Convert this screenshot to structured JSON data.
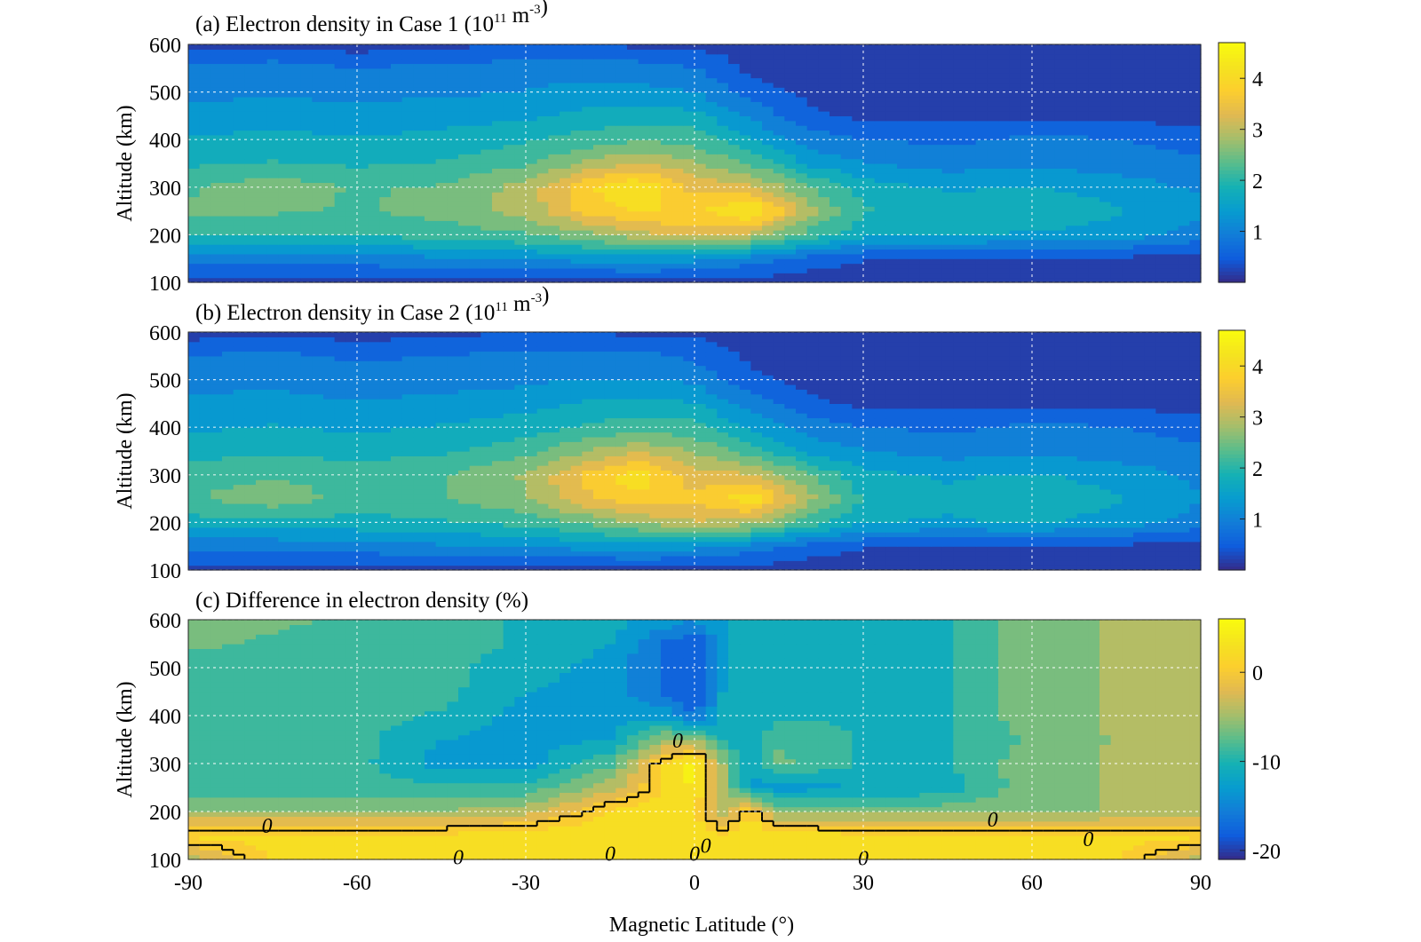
{
  "figure": {
    "xlabel": "Magnetic Latitude (°)"
  },
  "chart_data": [
    {
      "type": "heatmap",
      "title": {
        "main": "(a) Electron density in Case 1 (10",
        "exp": "11",
        "mid": " m",
        "exp2": "-3",
        "end": ")"
      },
      "ylabel": "Altitude (km)",
      "xlim": [
        -90,
        90
      ],
      "ylim": [
        100,
        600
      ],
      "xticks": [
        "-90",
        "-60",
        "-30",
        "0",
        "30",
        "60",
        "90"
      ],
      "yticks": [
        "100",
        "200",
        "300",
        "400",
        "500",
        "600"
      ],
      "grid": true,
      "colorbar": {
        "range": [
          0,
          4.7
        ],
        "ticks": [
          "1",
          "2",
          "3",
          "4"
        ],
        "tick_values": [
          1,
          2,
          3,
          4
        ],
        "colormap": "parula"
      },
      "x": [
        -90,
        -75,
        -60,
        -45,
        -30,
        -20,
        -10,
        0,
        10,
        20,
        30,
        45,
        60,
        75,
        90
      ],
      "y": [
        100,
        150,
        200,
        250,
        300,
        350,
        400,
        450,
        500,
        550,
        600
      ],
      "z": [
        [
          0.2,
          0.2,
          0.2,
          0.2,
          0.2,
          0.2,
          0.2,
          0.2,
          0.2,
          0.2,
          0.2,
          0.2,
          0.2,
          0.2,
          0.2
        ],
        [
          0.9,
          0.9,
          1.0,
          1.1,
          1.2,
          1.3,
          1.4,
          1.3,
          1.0,
          0.6,
          0.4,
          0.3,
          0.3,
          0.3,
          0.2
        ],
        [
          2.0,
          2.0,
          2.0,
          2.1,
          2.3,
          2.6,
          3.0,
          3.3,
          3.0,
          2.2,
          1.7,
          1.6,
          1.5,
          1.4,
          1.0
        ],
        [
          2.4,
          2.4,
          2.3,
          2.5,
          2.9,
          3.6,
          4.0,
          3.8,
          4.4,
          2.9,
          2.0,
          1.8,
          1.9,
          1.6,
          1.3
        ],
        [
          2.3,
          2.6,
          2.3,
          2.4,
          2.9,
          3.8,
          4.3,
          3.4,
          3.3,
          2.4,
          1.8,
          1.5,
          1.6,
          1.4,
          1.1
        ],
        [
          1.9,
          2.0,
          1.9,
          2.0,
          2.3,
          2.8,
          3.2,
          2.8,
          2.3,
          1.5,
          1.2,
          1.0,
          1.1,
          1.0,
          0.9
        ],
        [
          1.6,
          1.7,
          1.6,
          1.7,
          1.9,
          2.1,
          2.3,
          2.2,
          1.6,
          1.0,
          0.8,
          0.7,
          0.9,
          0.8,
          0.6
        ],
        [
          1.3,
          1.4,
          1.3,
          1.4,
          1.5,
          1.7,
          1.8,
          1.7,
          1.1,
          0.5,
          0.3,
          0.3,
          0.3,
          0.3,
          0.2
        ],
        [
          1.1,
          1.1,
          1.1,
          1.1,
          1.2,
          1.3,
          1.3,
          1.2,
          0.6,
          0.3,
          0.2,
          0.2,
          0.2,
          0.2,
          0.2
        ],
        [
          0.9,
          1.0,
          0.8,
          0.9,
          1.0,
          1.0,
          1.0,
          0.8,
          0.3,
          0.2,
          0.2,
          0.2,
          0.2,
          0.2,
          0.2
        ],
        [
          0.2,
          0.3,
          0.2,
          0.3,
          0.4,
          0.4,
          0.3,
          0.3,
          0.2,
          0.2,
          0.2,
          0.2,
          0.2,
          0.2,
          0.2
        ]
      ]
    },
    {
      "type": "heatmap",
      "title": {
        "main": "(b) Electron density in Case 2 (10",
        "exp": "11",
        "mid": " m",
        "exp2": "-3",
        "end": ")"
      },
      "ylabel": "Altitude (km)",
      "xlim": [
        -90,
        90
      ],
      "ylim": [
        100,
        600
      ],
      "xticks": [
        "-90",
        "-60",
        "-30",
        "0",
        "30",
        "60",
        "90"
      ],
      "yticks": [
        "100",
        "200",
        "300",
        "400",
        "500",
        "600"
      ],
      "grid": true,
      "colorbar": {
        "range": [
          0,
          4.7
        ],
        "ticks": [
          "1",
          "2",
          "3",
          "4"
        ],
        "tick_values": [
          1,
          2,
          3,
          4
        ],
        "colormap": "parula"
      },
      "x": [
        -90,
        -75,
        -60,
        -45,
        -30,
        -20,
        -10,
        0,
        10,
        20,
        30,
        45,
        60,
        75,
        90
      ],
      "y": [
        100,
        150,
        200,
        250,
        300,
        350,
        400,
        450,
        500,
        550,
        600
      ],
      "z": [
        [
          0.2,
          0.2,
          0.2,
          0.2,
          0.2,
          0.2,
          0.2,
          0.2,
          0.2,
          0.2,
          0.2,
          0.2,
          0.2,
          0.2,
          0.2
        ],
        [
          0.9,
          0.9,
          1.0,
          1.1,
          1.2,
          1.3,
          1.4,
          1.3,
          1.0,
          0.6,
          0.4,
          0.3,
          0.3,
          0.3,
          0.2
        ],
        [
          1.8,
          1.8,
          1.8,
          1.9,
          2.1,
          2.4,
          2.8,
          3.1,
          2.9,
          2.2,
          1.6,
          1.5,
          1.6,
          1.4,
          1.0
        ],
        [
          2.3,
          2.6,
          2.2,
          2.3,
          2.7,
          3.4,
          3.8,
          3.6,
          4.2,
          2.9,
          1.9,
          1.7,
          2.0,
          1.6,
          1.2
        ],
        [
          2.2,
          2.3,
          2.2,
          2.3,
          2.8,
          3.6,
          4.2,
          3.3,
          3.2,
          2.4,
          1.7,
          1.5,
          1.6,
          1.4,
          1.1
        ],
        [
          1.8,
          1.9,
          1.8,
          1.9,
          2.2,
          2.7,
          3.1,
          2.7,
          2.2,
          1.5,
          1.2,
          1.0,
          1.1,
          1.0,
          0.9
        ],
        [
          1.5,
          1.6,
          1.5,
          1.6,
          1.8,
          2.0,
          2.2,
          2.1,
          1.5,
          1.0,
          0.8,
          0.7,
          0.9,
          0.8,
          0.6
        ],
        [
          1.3,
          1.3,
          1.2,
          1.3,
          1.4,
          1.6,
          1.7,
          1.6,
          1.0,
          0.5,
          0.3,
          0.3,
          0.3,
          0.3,
          0.2
        ],
        [
          1.0,
          1.1,
          1.0,
          1.0,
          1.1,
          1.2,
          1.2,
          1.1,
          0.5,
          0.3,
          0.2,
          0.2,
          0.2,
          0.2,
          0.2
        ],
        [
          0.8,
          0.9,
          0.7,
          0.8,
          0.9,
          0.9,
          0.9,
          0.7,
          0.3,
          0.2,
          0.2,
          0.2,
          0.2,
          0.2,
          0.2
        ],
        [
          0.2,
          0.3,
          0.2,
          0.3,
          0.4,
          0.4,
          0.3,
          0.3,
          0.2,
          0.2,
          0.2,
          0.2,
          0.2,
          0.2,
          0.2
        ]
      ]
    },
    {
      "type": "heatmap",
      "title": {
        "main": "(c) Difference in electron density (%)",
        "exp": "",
        "mid": "",
        "exp2": "",
        "end": ""
      },
      "ylabel": "Altitude (km)",
      "xlim": [
        -90,
        90
      ],
      "ylim": [
        100,
        600
      ],
      "xticks": [
        "-90",
        "-60",
        "-30",
        "0",
        "30",
        "60",
        "90"
      ],
      "yticks": [
        "100",
        "200",
        "300",
        "400",
        "500",
        "600"
      ],
      "grid": true,
      "colorbar": {
        "range": [
          -21,
          6
        ],
        "ticks": [
          "-20",
          "-10",
          "0"
        ],
        "tick_values": [
          -20,
          -10,
          0
        ],
        "colormap": "parula"
      },
      "contour_labels": [
        "0",
        "0",
        "0",
        "0",
        "0",
        "0",
        "0",
        "0",
        "0"
      ],
      "x": [
        -90,
        -75,
        -60,
        -45,
        -30,
        -15,
        -5,
        0,
        5,
        10,
        15,
        30,
        45,
        60,
        75,
        90
      ],
      "y": [
        100,
        150,
        200,
        250,
        300,
        350,
        400,
        450,
        500,
        550,
        600
      ],
      "z": [
        [
          -4,
          2,
          2,
          2,
          2,
          2,
          2,
          2,
          2,
          2,
          2,
          2,
          2,
          2,
          2,
          -4
        ],
        [
          2,
          2,
          2,
          2,
          3,
          3,
          3,
          3,
          2,
          3,
          3,
          2,
          2,
          2,
          2,
          2
        ],
        [
          -5,
          -5,
          -5,
          -5,
          -4,
          2,
          3,
          2,
          -5,
          2,
          -6,
          -6,
          -6,
          -6,
          -5,
          -5
        ],
        [
          -9,
          -9,
          -9,
          -9,
          -9,
          -4,
          2,
          4,
          -5,
          -12,
          -13,
          -12,
          -11,
          -6,
          -5,
          -5
        ],
        [
          -9,
          -9,
          -9,
          -13,
          -13,
          -8,
          2,
          5,
          -5,
          -13,
          -7,
          -10,
          -10,
          -6,
          -5,
          -5
        ],
        [
          -9,
          -9,
          -9,
          -12,
          -13,
          -12,
          -5,
          -5,
          -10,
          -12,
          -8,
          -10,
          -10,
          -7,
          -5,
          -5
        ],
        [
          -9,
          -9,
          -9,
          -10,
          -13,
          -13,
          -13,
          -17,
          -12,
          -10,
          -10,
          -10,
          -10,
          -6,
          -5,
          -5
        ],
        [
          -9,
          -9,
          -9,
          -9,
          -12,
          -13,
          -17,
          -19,
          -12,
          -10,
          -10,
          -10,
          -10,
          -6,
          -5,
          -5
        ],
        [
          -9,
          -9,
          -9,
          -9,
          -11,
          -13,
          -17,
          -19,
          -13,
          -10,
          -10,
          -10,
          -10,
          -6,
          -5,
          -5
        ],
        [
          -7,
          -8,
          -9,
          -9,
          -10,
          -12,
          -17,
          -19,
          -13,
          -10,
          -10,
          -10,
          -10,
          -6,
          -5,
          -5
        ],
        [
          -6,
          -7,
          -8,
          -9,
          -10,
          -11,
          -13,
          -14,
          -12,
          -10,
          -10,
          -10,
          -10,
          -6,
          -5,
          -5
        ]
      ]
    }
  ]
}
